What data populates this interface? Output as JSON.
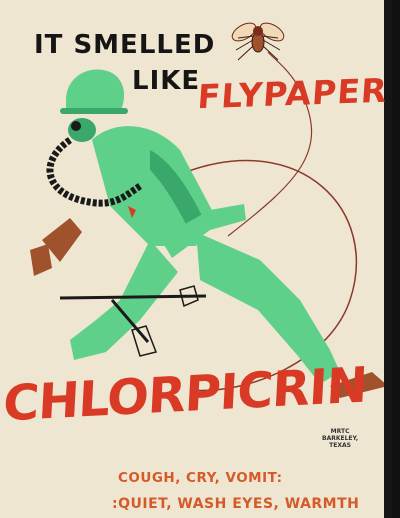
{
  "headline": {
    "line1": "IT SMELLED",
    "line2": "LIKE"
  },
  "odor": "FLYPAPER",
  "agent": "CHLORPICRIN",
  "symptoms": "COUGH, CRY, VOMIT:",
  "treatment": ":QUIET, WASH EYES, WARMTH",
  "credit": {
    "line1": "MRTC",
    "line2": "BARKELEY,",
    "line3": "TEXAS"
  },
  "colors": {
    "paper": "#efe6d1",
    "accent_red": "#d83a26",
    "soldier_green": "#5fd08a",
    "soil_brown": "#a0522d",
    "text_orange": "#d55a2a"
  },
  "illustration": {
    "subject": "soldier-in-gas-mask",
    "insect": "fly-icon"
  }
}
